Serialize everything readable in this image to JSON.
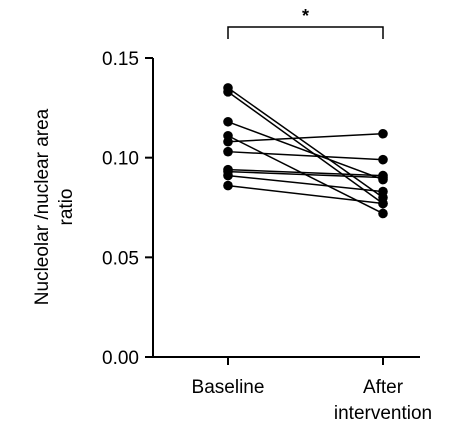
{
  "chart_data": {
    "type": "scatter",
    "paired": true,
    "categories": [
      "Baseline",
      "After\nintervention"
    ],
    "ylabel": "Nucleolar /nuclear area\nratio",
    "ylim": [
      0,
      0.15
    ],
    "yticks": [
      0.0,
      0.05,
      0.1,
      0.15
    ],
    "ytick_labels": [
      "0.00",
      "0.05",
      "0.10",
      "0.15"
    ],
    "grid": false,
    "significance": {
      "label": "*",
      "between": [
        0,
        1
      ]
    },
    "pairs": [
      {
        "baseline": 0.135,
        "after": 0.08
      },
      {
        "baseline": 0.133,
        "after": 0.077
      },
      {
        "baseline": 0.118,
        "after": 0.089
      },
      {
        "baseline": 0.111,
        "after": 0.072
      },
      {
        "baseline": 0.108,
        "after": 0.112
      },
      {
        "baseline": 0.103,
        "after": 0.099
      },
      {
        "baseline": 0.094,
        "after": 0.091
      },
      {
        "baseline": 0.093,
        "after": 0.09
      },
      {
        "baseline": 0.091,
        "after": 0.083
      },
      {
        "baseline": 0.086,
        "after": 0.077
      }
    ]
  }
}
